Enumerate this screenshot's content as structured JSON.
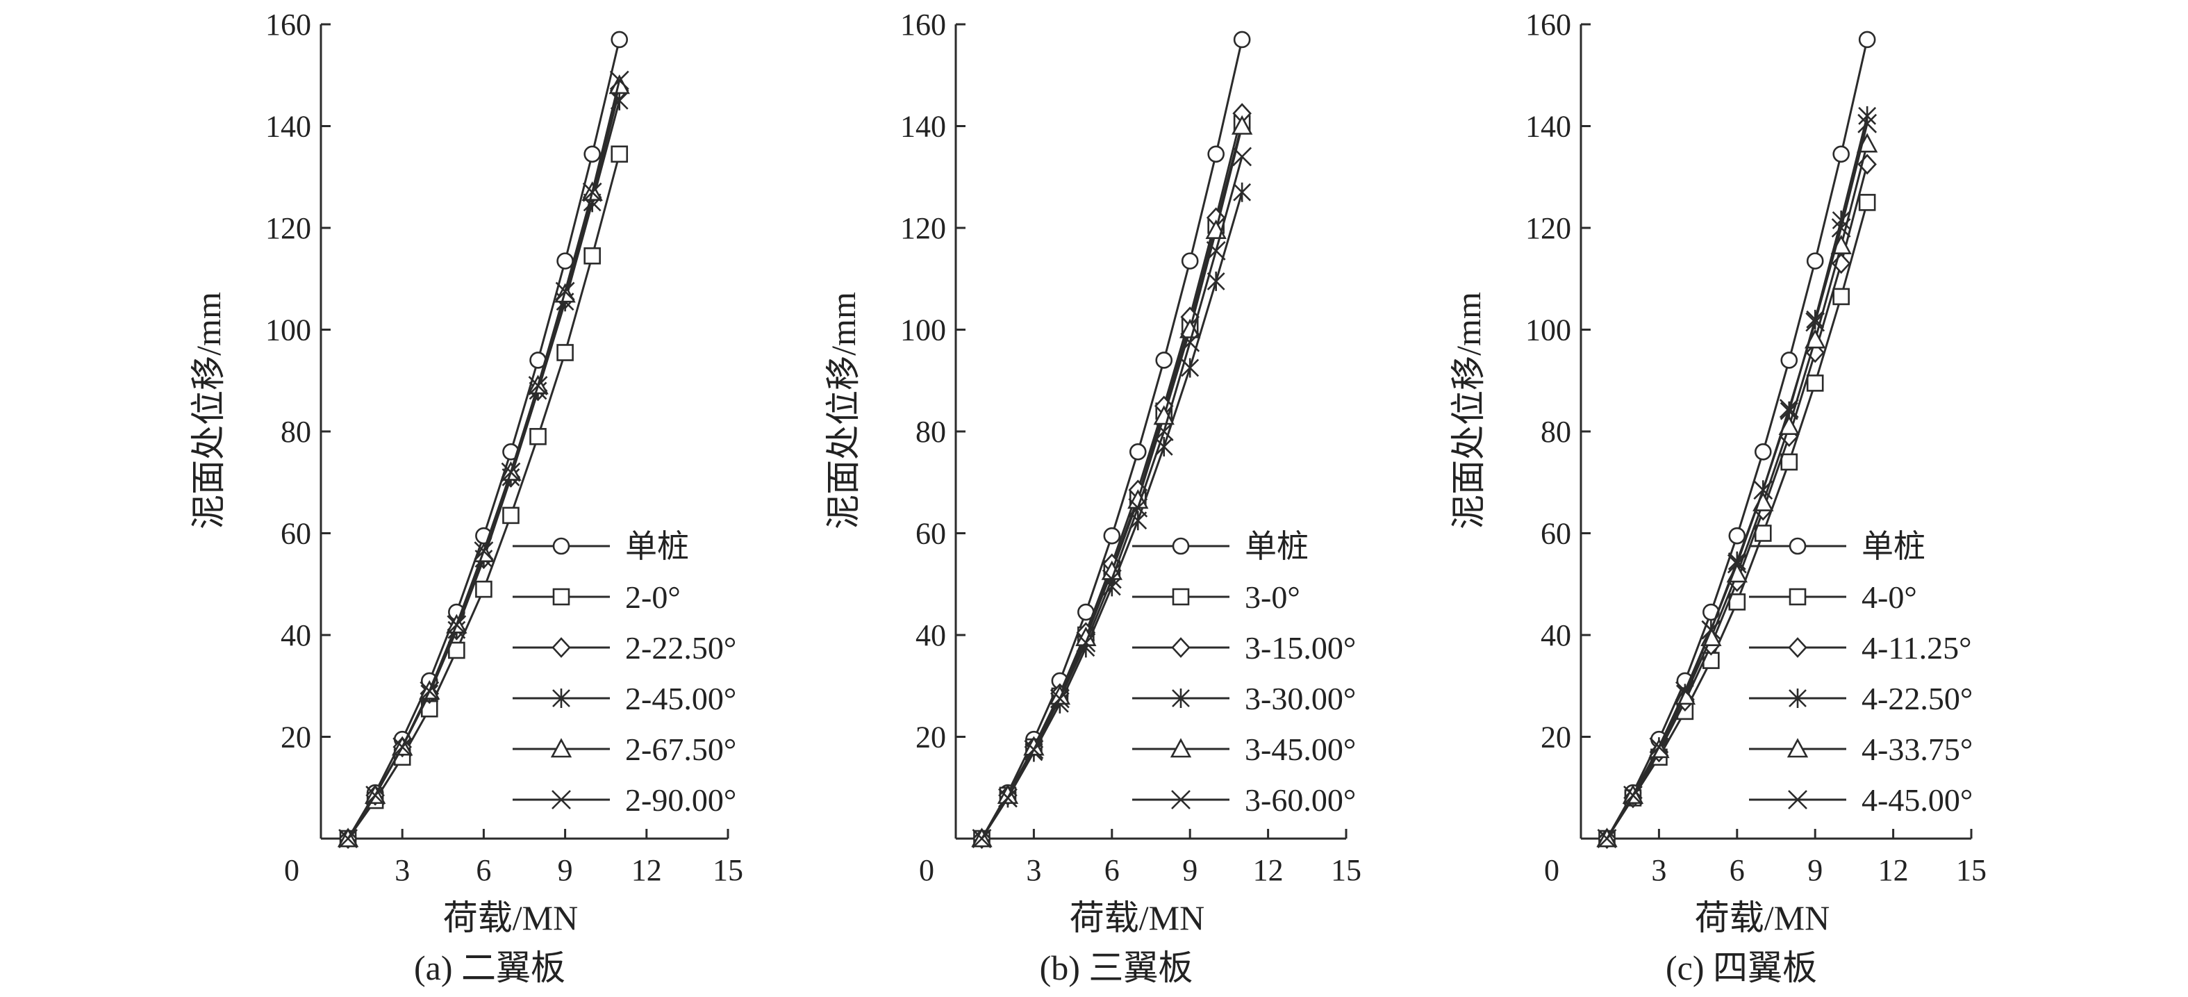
{
  "chart_data": [
    {
      "type": "line",
      "caption": "(a) 二翼板",
      "xlabel": "荷载/MN",
      "ylabel": "泥面处位移/mm",
      "xlim": [
        0,
        15
      ],
      "ylim": [
        0,
        160
      ],
      "xticks": [
        "0",
        "3",
        "6",
        "9",
        "12",
        "15"
      ],
      "yticks": [
        "20",
        "40",
        "60",
        "80",
        "100",
        "120",
        "140",
        "160"
      ],
      "legend_position": "lower-right",
      "x": [
        1,
        2,
        3,
        4,
        5,
        6,
        7,
        8,
        9,
        10,
        11
      ],
      "series": [
        {
          "name": "单桩",
          "marker": "circle",
          "values": [
            0,
            9,
            19.5,
            31,
            44.5,
            59.5,
            76,
            94,
            113.5,
            134.5,
            157
          ]
        },
        {
          "name": "2-0°",
          "marker": "square",
          "values": [
            0,
            7.5,
            16,
            25.5,
            37,
            49,
            63.5,
            79,
            95.5,
            114.5,
            134.5
          ]
        },
        {
          "name": "2-22.50°",
          "marker": "diamond",
          "values": [
            0,
            8.5,
            18,
            28.5,
            41,
            55,
            71,
            88,
            106,
            126,
            147
          ]
        },
        {
          "name": "2-45.00°",
          "marker": "asterisk",
          "values": [
            0,
            8.5,
            18,
            28.5,
            41,
            55,
            71,
            88,
            105.5,
            125,
            145
          ]
        },
        {
          "name": "2-67.50°",
          "marker": "triangle",
          "values": [
            0,
            8.5,
            18,
            29,
            42,
            56,
            72,
            89,
            107,
            127,
            148
          ]
        },
        {
          "name": "2-90.00°",
          "marker": "x",
          "values": [
            0,
            8.5,
            18,
            29,
            42,
            56.5,
            72,
            89,
            107.5,
            127,
            149
          ]
        }
      ]
    },
    {
      "type": "line",
      "caption": "(b) 三翼板",
      "xlabel": "荷载/MN",
      "ylabel": "泥面处位移/mm",
      "xlim": [
        0,
        15
      ],
      "ylim": [
        0,
        160
      ],
      "xticks": [
        "0",
        "3",
        "6",
        "9",
        "12",
        "15"
      ],
      "yticks": [
        "20",
        "40",
        "60",
        "80",
        "100",
        "120",
        "140",
        "160"
      ],
      "legend_position": "lower-right",
      "x": [
        1,
        2,
        3,
        4,
        5,
        6,
        7,
        8,
        9,
        10,
        11
      ],
      "series": [
        {
          "name": "单桩",
          "marker": "circle",
          "values": [
            0,
            9,
            19.5,
            31,
            44.5,
            59.5,
            76,
            94,
            113.5,
            134.5,
            157
          ]
        },
        {
          "name": "3-0°",
          "marker": "square",
          "values": [
            0,
            8.5,
            18,
            28,
            40,
            53,
            67,
            84,
            101,
            120.5,
            140.5
          ]
        },
        {
          "name": "3-15.00°",
          "marker": "diamond",
          "values": [
            0,
            8.5,
            18,
            28.5,
            40.5,
            54,
            68.5,
            85,
            102.5,
            122,
            142.5
          ]
        },
        {
          "name": "3-30.00°",
          "marker": "asterisk",
          "values": [
            0,
            8,
            17,
            26.5,
            37.5,
            49.5,
            62.5,
            77,
            92.5,
            109.5,
            127
          ]
        },
        {
          "name": "3-45.00°",
          "marker": "triangle",
          "values": [
            0,
            8.5,
            18,
            28,
            39.5,
            52.5,
            66.5,
            83,
            100,
            119.5,
            140
          ]
        },
        {
          "name": "3-60.00°",
          "marker": "x",
          "values": [
            0,
            8,
            17.5,
            27.5,
            38.5,
            51,
            65,
            80,
            97.5,
            115.5,
            134
          ]
        }
      ]
    },
    {
      "type": "line",
      "caption": "(c) 四翼板",
      "xlabel": "荷载/MN",
      "ylabel": "泥面处位移/mm",
      "xlim": [
        0,
        15
      ],
      "ylim": [
        0,
        160
      ],
      "xticks": [
        "0",
        "3",
        "6",
        "9",
        "12",
        "15"
      ],
      "yticks": [
        "20",
        "40",
        "60",
        "80",
        "100",
        "120",
        "140",
        "160"
      ],
      "legend_position": "lower-right",
      "x": [
        1,
        2,
        3,
        4,
        5,
        6,
        7,
        8,
        9,
        10,
        11
      ],
      "series": [
        {
          "name": "单桩",
          "marker": "circle",
          "values": [
            0,
            9,
            19.5,
            31,
            44.5,
            59.5,
            76,
            94,
            113.5,
            134.5,
            157
          ]
        },
        {
          "name": "4-0°",
          "marker": "square",
          "values": [
            0,
            8,
            16,
            25,
            35,
            46.5,
            60,
            74,
            89.5,
            106.5,
            125
          ]
        },
        {
          "name": "4-11.25°",
          "marker": "diamond",
          "values": [
            0,
            8,
            17,
            27,
            38,
            50.5,
            64.5,
            79,
            95.5,
            113,
            132.5
          ]
        },
        {
          "name": "4-22.50°",
          "marker": "asterisk",
          "values": [
            0,
            8.5,
            18,
            28.5,
            41,
            54.5,
            68.5,
            84,
            102,
            121.5,
            142
          ]
        },
        {
          "name": "4-33.75°",
          "marker": "triangle",
          "values": [
            0,
            8.5,
            17.5,
            28,
            39.5,
            52,
            66,
            81,
            98,
            116.5,
            136.5
          ]
        },
        {
          "name": "4-45.00°",
          "marker": "x",
          "values": [
            0,
            8.5,
            18,
            29,
            41,
            54,
            68.5,
            84.5,
            101.5,
            120,
            140.5
          ]
        }
      ]
    }
  ]
}
